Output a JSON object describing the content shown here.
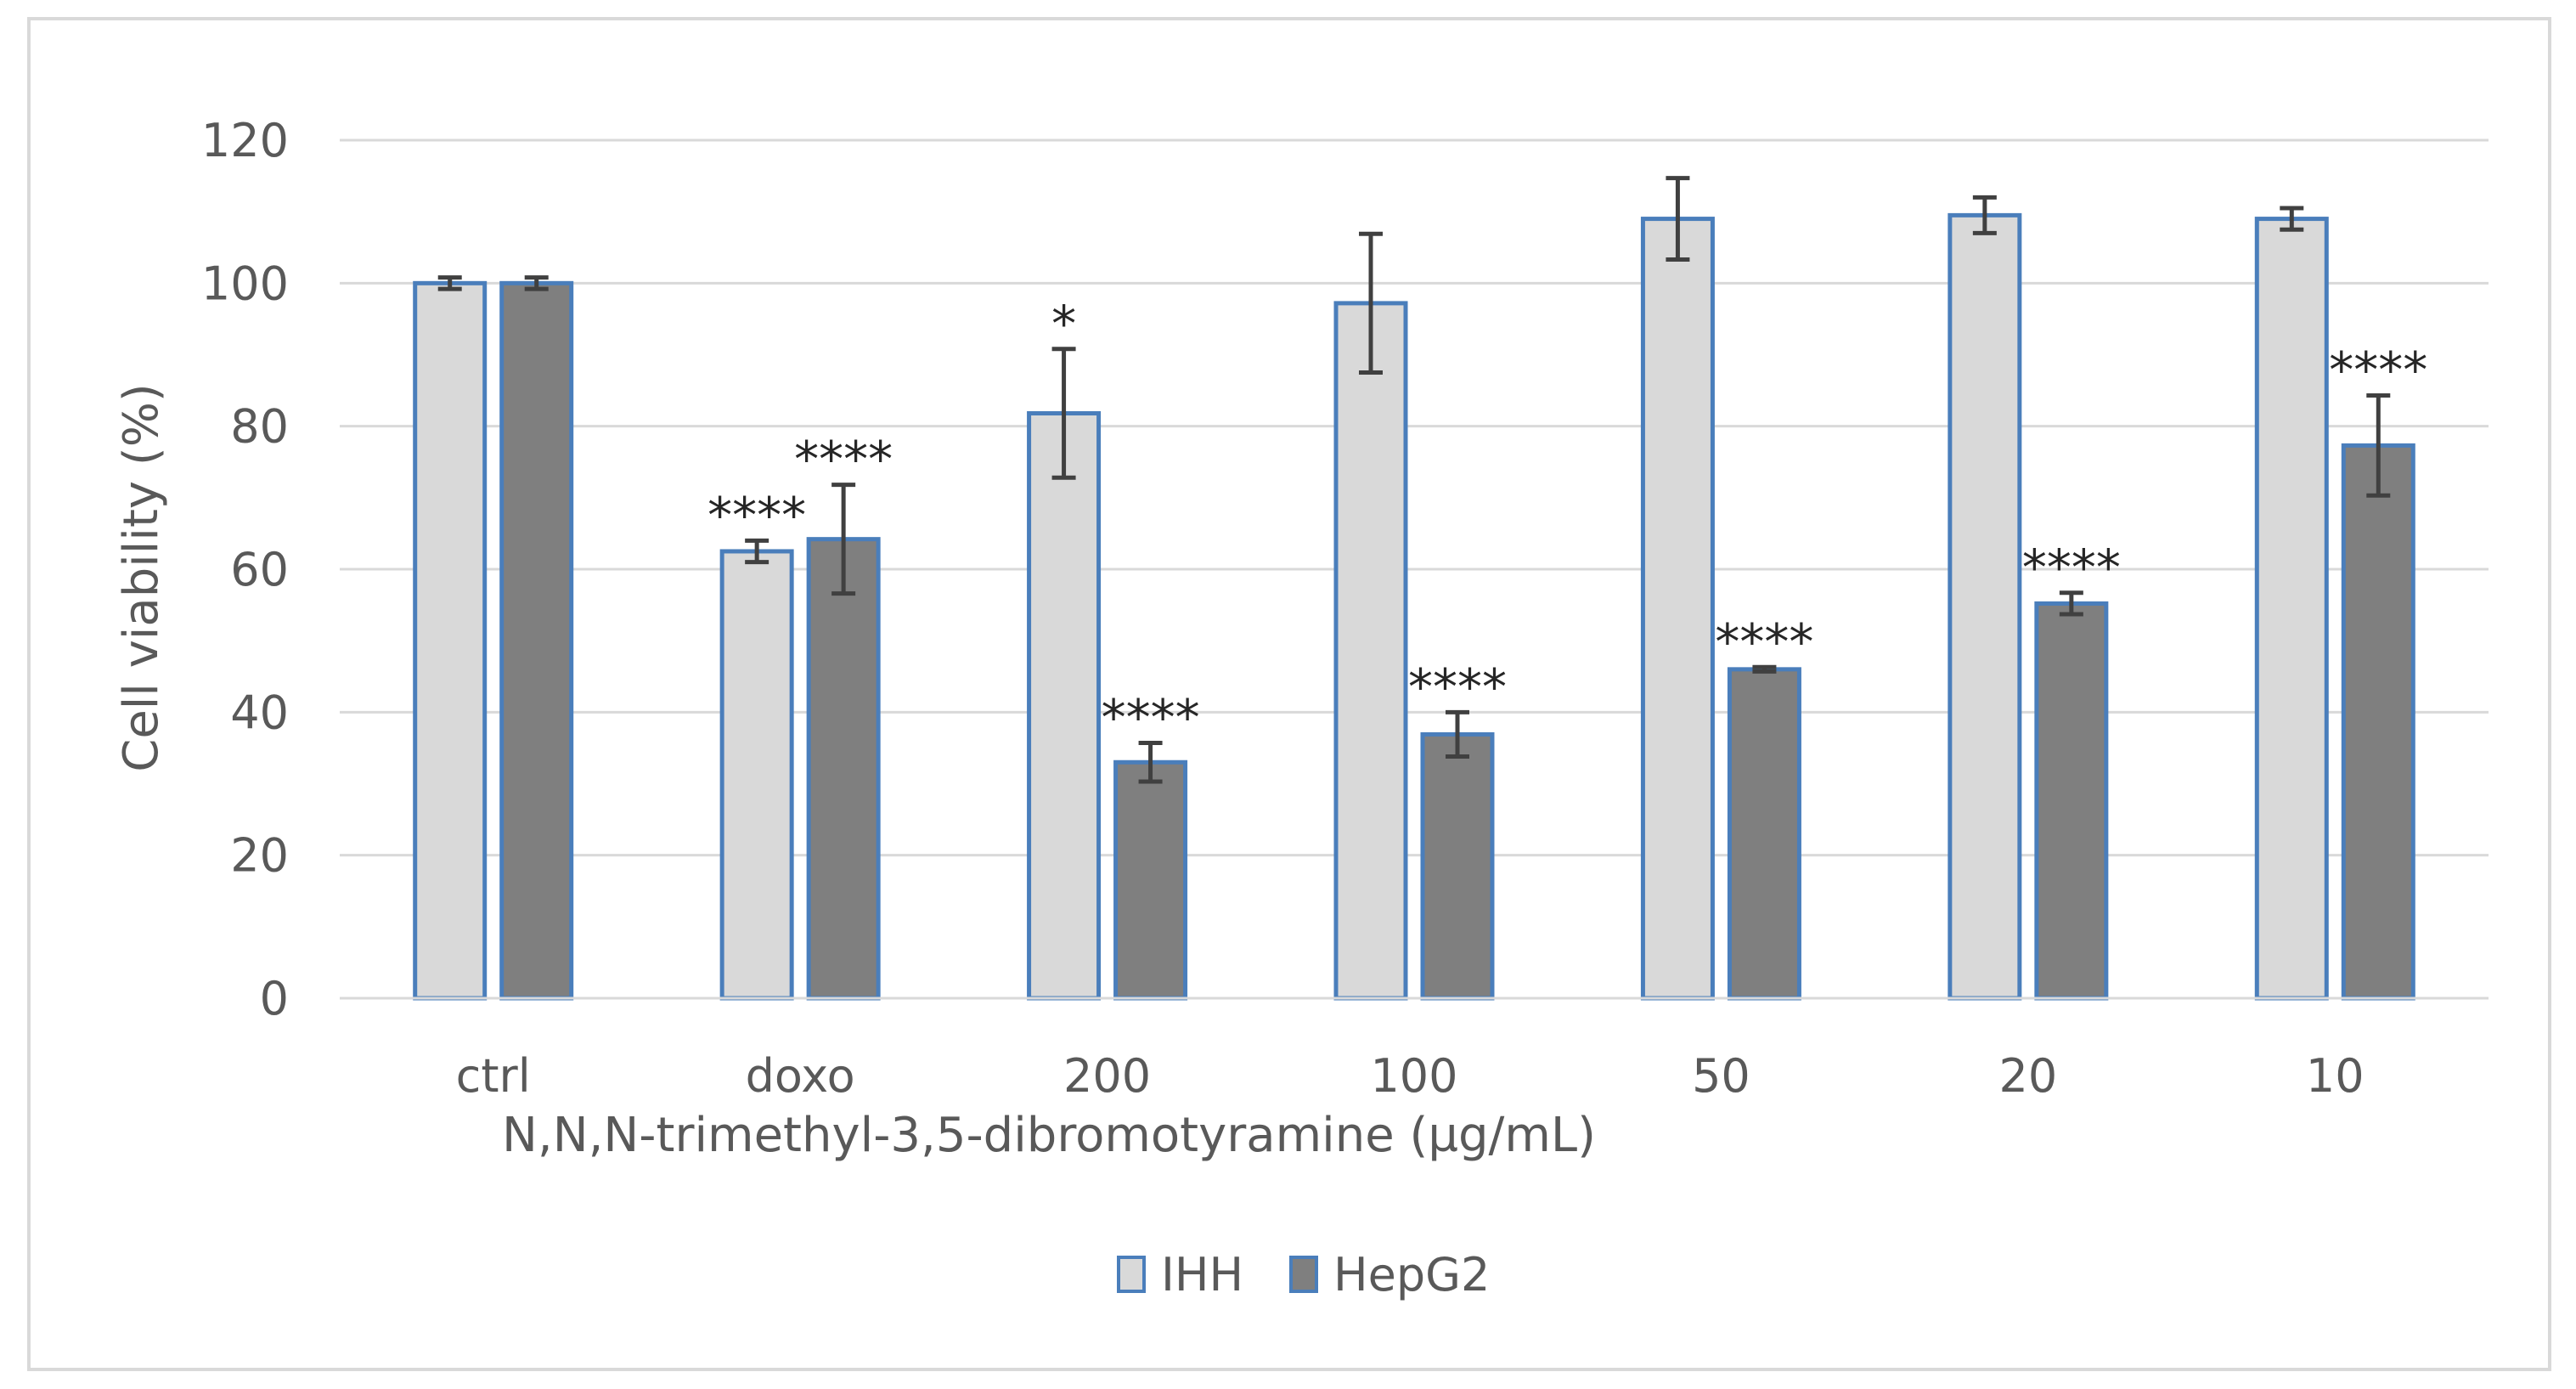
{
  "chart_data": {
    "type": "bar",
    "title": "",
    "xlabel": "N,N,N-trimethyl-3,5-dibromotyramine (µg/mL)",
    "ylabel": "Cell viability (%)",
    "ylim": [
      0,
      120
    ],
    "yticks": [
      0,
      20,
      40,
      60,
      80,
      100,
      120
    ],
    "grid": true,
    "legend_position": "bottom",
    "categories": [
      "ctrl",
      "doxo",
      "200",
      "100",
      "50",
      "20",
      "10"
    ],
    "series": [
      {
        "name": "IHH",
        "color": "#d9d9d9",
        "border": "#4a7ebb",
        "values": [
          100,
          62.5,
          81.8,
          97.2,
          109.0,
          109.5,
          109.0
        ],
        "errors": [
          0.8,
          1.5,
          9.0,
          9.7,
          5.7,
          2.5,
          1.5
        ],
        "significance": [
          "",
          "****",
          "*",
          "",
          "",
          "",
          ""
        ]
      },
      {
        "name": "HepG2",
        "color": "#7f7f7f",
        "border": "#4a7ebb",
        "values": [
          100,
          64.2,
          33.0,
          36.9,
          46.0,
          55.2,
          77.3
        ],
        "errors": [
          0.8,
          7.6,
          2.7,
          3.1,
          0.3,
          1.5,
          7.0
        ],
        "significance": [
          "",
          "****",
          "****",
          "****",
          "****",
          "****",
          "****"
        ]
      }
    ]
  }
}
